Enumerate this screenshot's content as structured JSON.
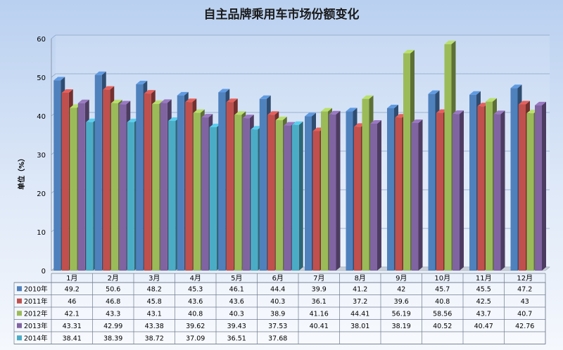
{
  "chart_data": {
    "type": "bar",
    "title": "自主品牌乘用车市场份额变化",
    "ylabel": "单位（%）",
    "ylim": [
      0,
      60
    ],
    "yticks": [
      0,
      10,
      20,
      30,
      40,
      50,
      60
    ],
    "grid": true,
    "legend": "data-table",
    "categories": [
      "1月",
      "2月",
      "3月",
      "4月",
      "5月",
      "6月",
      "7月",
      "8月",
      "9月",
      "10月",
      "11月",
      "12月"
    ],
    "series": [
      {
        "name": "2010年",
        "color": "#4f81bd",
        "values": [
          49.2,
          50.6,
          48.2,
          45.3,
          46.1,
          44.4,
          39.9,
          41.2,
          42,
          45.7,
          45.5,
          47.2
        ]
      },
      {
        "name": "2011年",
        "color": "#c0504d",
        "values": [
          46,
          46.8,
          45.8,
          43.6,
          43.6,
          40.3,
          36.1,
          37.2,
          39.6,
          40.8,
          42.5,
          43
        ]
      },
      {
        "name": "2012年",
        "color": "#9bbb59",
        "values": [
          42.1,
          43.3,
          43.1,
          40.8,
          40.3,
          38.9,
          41.16,
          44.41,
          56.19,
          58.56,
          43.7,
          40.7
        ]
      },
      {
        "name": "2013年",
        "color": "#8064a2",
        "values": [
          43.31,
          42.99,
          43.38,
          39.62,
          39.43,
          37.53,
          40.41,
          38.01,
          38.19,
          40.52,
          40.47,
          42.76
        ]
      },
      {
        "name": "2014年",
        "color": "#4bacc6",
        "values": [
          38.41,
          38.39,
          38.72,
          37.09,
          36.51,
          37.68,
          null,
          null,
          null,
          null,
          null,
          null
        ]
      }
    ]
  }
}
